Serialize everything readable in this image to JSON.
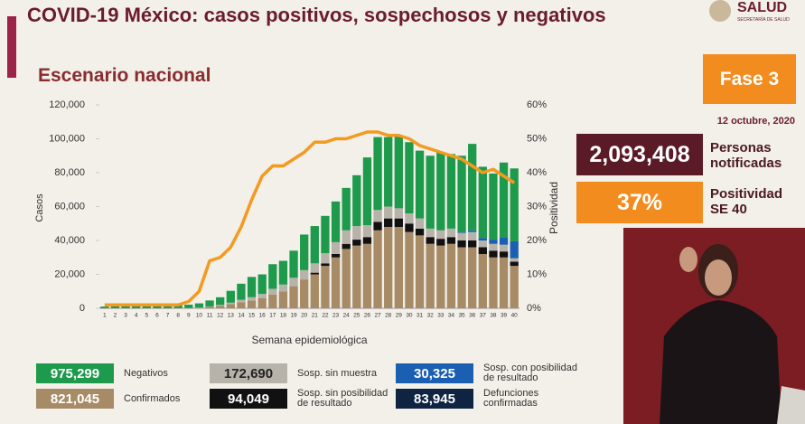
{
  "header": {
    "title": "COVID-19 México: casos positivos, sospechosos y negativos",
    "logo": "SALUD",
    "logo_sub": "SECRETARÍA DE SALUD"
  },
  "panel": {
    "phase": "Fase 3",
    "date": "12 octubre, 2020",
    "notified": {
      "value": "2,093,408",
      "label": "Personas notificadas"
    },
    "positivity": {
      "value": "37%",
      "label": "Positividad SE 40"
    },
    "deaths": {
      "value": "83,945",
      "label": "Defunciones confirmadas",
      "color": "#0f2343"
    }
  },
  "chart_data": {
    "type": "bar",
    "stacked": true,
    "title": "Escenario nacional",
    "x_label": "Semana epidemiológica",
    "y_label": "Casos",
    "y2_label": "Positividad",
    "categories": [
      "1",
      "2",
      "3",
      "4",
      "5",
      "6",
      "7",
      "8",
      "9",
      "10",
      "11",
      "12",
      "13",
      "14",
      "15",
      "16",
      "17",
      "18",
      "19",
      "20",
      "21",
      "22",
      "23",
      "24",
      "25",
      "26",
      "27",
      "28",
      "29",
      "30",
      "31",
      "32",
      "33",
      "34",
      "35",
      "36",
      "37",
      "38",
      "39",
      "40"
    ],
    "ylim": [
      0,
      120000
    ],
    "yticks": [
      0,
      {
        "value": 20000,
        "label": "20,000"
      },
      {
        "value": 40000,
        "label": "40,000"
      },
      {
        "value": 60000,
        "label": "60,000"
      },
      {
        "value": 80000,
        "label": "80,000"
      },
      {
        "value": 100000,
        "label": "100,000"
      },
      {
        "value": 120000,
        "label": "120,000"
      }
    ],
    "y2lim": [
      0,
      60
    ],
    "y2ticks": [
      {
        "value": 0,
        "label": "0%"
      },
      {
        "value": 10,
        "label": "10%"
      },
      {
        "value": 20,
        "label": "20%"
      },
      {
        "value": 30,
        "label": "30%"
      },
      {
        "value": 40,
        "label": "40%"
      },
      {
        "value": 50,
        "label": "50%"
      },
      {
        "value": 60,
        "label": "60%"
      }
    ],
    "series": [
      {
        "name": "Confirmados",
        "total": "821,045",
        "color": "#a68b66",
        "values": [
          0,
          0,
          0,
          0,
          0,
          0,
          0,
          0,
          50,
          200,
          800,
          1500,
          2500,
          3500,
          4500,
          6000,
          8000,
          10000,
          13000,
          17000,
          20000,
          25000,
          30000,
          35000,
          37000,
          38000,
          46000,
          48000,
          48000,
          45000,
          43000,
          38000,
          37000,
          38000,
          36000,
          36000,
          32000,
          30000,
          30000,
          25000
        ]
      },
      {
        "name": "Sosp. sin posibilidad de resultado",
        "total": "94,049",
        "color": "#111111",
        "values": [
          0,
          0,
          0,
          0,
          0,
          0,
          0,
          0,
          0,
          0,
          0,
          0,
          0,
          0,
          0,
          0,
          0,
          0,
          0,
          0,
          1000,
          1500,
          2000,
          3000,
          3500,
          4000,
          5000,
          5000,
          5000,
          5000,
          4000,
          4000,
          4000,
          4000,
          4000,
          4000,
          4000,
          4000,
          3500,
          2500
        ]
      },
      {
        "name": "Sosp. sin muestra",
        "total": "172,690",
        "color": "#b7b2aa",
        "values": [
          0,
          0,
          0,
          0,
          0,
          0,
          0,
          100,
          100,
          200,
          300,
          500,
          800,
          1500,
          2000,
          2500,
          3500,
          4000,
          5000,
          5500,
          5500,
          6000,
          7000,
          8000,
          8000,
          7000,
          7000,
          7000,
          6000,
          6000,
          6000,
          5000,
          5000,
          5000,
          4500,
          5000,
          4000,
          4000,
          4000,
          2000
        ]
      },
      {
        "name": "Sosp. con posibilidad de resultado",
        "total": "30,325",
        "color": "#1b5fb3",
        "values": [
          0,
          0,
          0,
          0,
          0,
          0,
          0,
          0,
          0,
          0,
          0,
          0,
          0,
          0,
          0,
          0,
          0,
          0,
          0,
          0,
          0,
          0,
          0,
          0,
          0,
          0,
          0,
          0,
          0,
          0,
          0,
          0,
          0,
          0,
          500,
          1000,
          1500,
          2500,
          4500,
          10000
        ]
      },
      {
        "name": "Negativos",
        "total": "975,299",
        "color": "#1e9a4c",
        "values": [
          1000,
          1200,
          1500,
          2000,
          1800,
          1700,
          1700,
          1800,
          2000,
          2500,
          3500,
          4500,
          7000,
          9500,
          12000,
          11500,
          14500,
          14000,
          16000,
          21000,
          22000,
          22000,
          24000,
          25000,
          30000,
          40000,
          43000,
          41000,
          42500,
          42000,
          40000,
          43000,
          46000,
          44000,
          45000,
          51000,
          42000,
          39000,
          44000,
          43000
        ]
      },
      {
        "type": "line",
        "axis": "y2",
        "color": "#f39a1f",
        "values": [
          1,
          1,
          1,
          1,
          1,
          1,
          1,
          1,
          2,
          5,
          14,
          15,
          18,
          24,
          32,
          39,
          42,
          42,
          44,
          46,
          49,
          49,
          50,
          50,
          51,
          52,
          52,
          51,
          51,
          50,
          48,
          47,
          46,
          45,
          44,
          42,
          40,
          41,
          39,
          37
        ]
      }
    ]
  }
}
